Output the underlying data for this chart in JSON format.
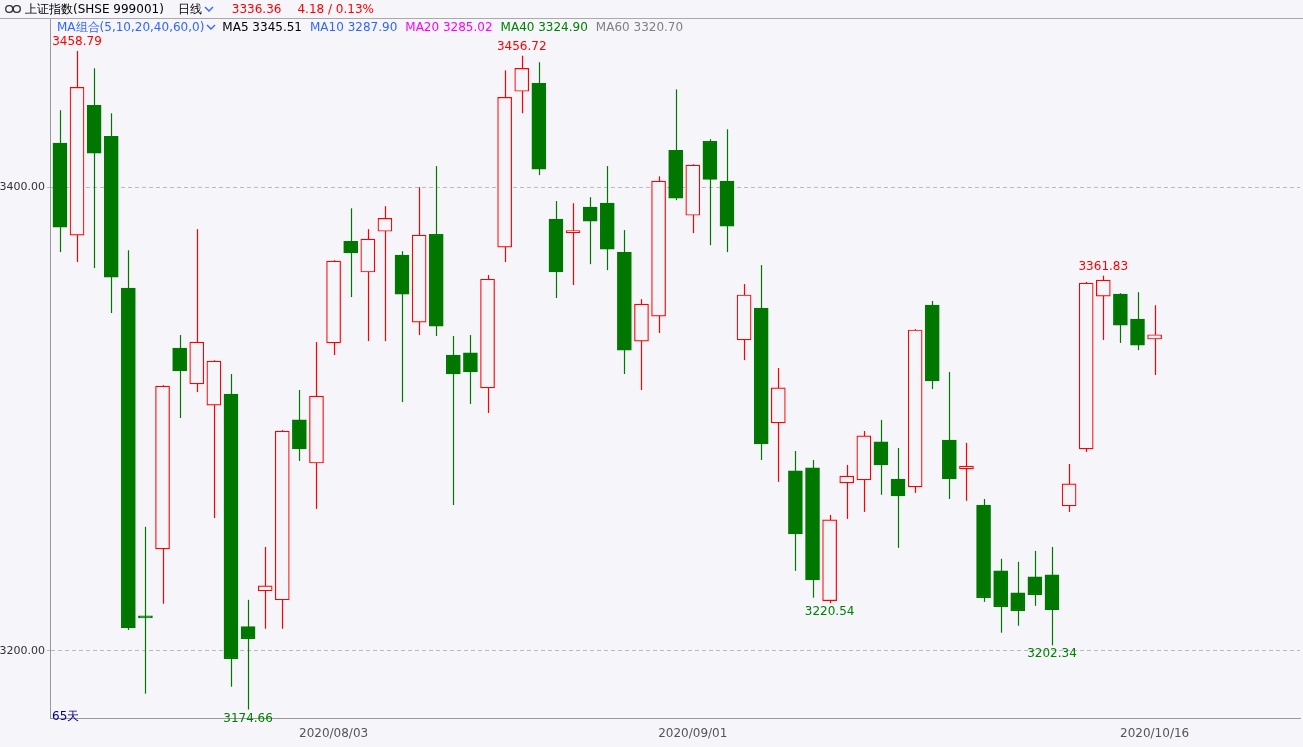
{
  "chart_data": {
    "type": "candlestick",
    "title": "上证指数(SHSE 999001)",
    "subtitle": "日线",
    "categories": [
      null,
      null,
      null,
      null,
      null,
      null,
      null,
      null,
      null,
      null,
      null,
      null,
      null,
      null,
      null,
      null,
      "2020/08/03",
      null,
      null,
      null,
      null,
      null,
      null,
      null,
      null,
      null,
      null,
      null,
      null,
      null,
      null,
      null,
      null,
      null,
      null,
      null,
      null,
      "2020/09/01",
      null,
      null,
      null,
      null,
      null,
      null,
      null,
      null,
      null,
      null,
      null,
      null,
      null,
      null,
      null,
      null,
      null,
      null,
      null,
      null,
      null,
      null,
      null,
      null,
      null,
      null,
      "2020/10/16"
    ],
    "ohlc": [
      [
        3419.0,
        3433.2,
        3372.0,
        3382.8
      ],
      [
        3379.3,
        3458.79,
        3367.7,
        3443.1
      ],
      [
        3435.3,
        3451.3,
        3365.1,
        3414.7
      ],
      [
        3422.0,
        3431.9,
        3345.7,
        3361.2
      ],
      [
        3356.5,
        3372.8,
        3209.0,
        3209.9
      ],
      [
        3214.5,
        3253.5,
        3181.5,
        3214.2
      ],
      [
        3244.0,
        3314.6,
        3220.3,
        3314.2
      ],
      [
        3330.6,
        3336.2,
        3300.4,
        3320.7
      ],
      [
        3315.1,
        3381.9,
        3311.6,
        3333.2
      ],
      [
        3306.0,
        3325.3,
        3257.3,
        3325.0
      ],
      [
        3310.8,
        3319.4,
        3184.5,
        3196.6
      ],
      [
        3210.4,
        3222.0,
        3174.66,
        3205.2
      ],
      [
        3225.9,
        3244.8,
        3209.5,
        3228.0
      ],
      [
        3222.0,
        3295.2,
        3209.5,
        3294.8
      ],
      [
        3299.6,
        3312.5,
        3281.9,
        3287.1
      ],
      [
        3281.0,
        3333.2,
        3261.2,
        3309.9
      ],
      [
        3332.8,
        3368.5,
        3327.6,
        3368.1
      ],
      [
        3376.7,
        3390.9,
        3352.6,
        3371.6
      ],
      [
        3363.4,
        3381.9,
        3333.6,
        3377.6
      ],
      [
        3381.0,
        3391.8,
        3333.6,
        3386.6
      ],
      [
        3370.7,
        3372.4,
        3307.3,
        3353.9
      ],
      [
        3341.8,
        3400.0,
        3336.2,
        3379.3
      ],
      [
        3379.7,
        3409.1,
        3335.8,
        3340.1
      ],
      [
        3327.6,
        3335.8,
        3262.9,
        3319.4
      ],
      [
        3328.5,
        3336.2,
        3306.5,
        3320.3
      ],
      [
        3313.4,
        3362.1,
        3302.6,
        3360.3
      ],
      [
        3374.1,
        3450.4,
        3367.7,
        3438.8
      ],
      [
        3441.4,
        3456.72,
        3431.9,
        3451.3
      ],
      [
        3444.8,
        3453.9,
        3405.2,
        3407.8
      ],
      [
        3386.2,
        3394.0,
        3352.2,
        3363.4
      ],
      [
        3380.4,
        3393.1,
        3357.8,
        3380.6
      ],
      [
        3391.4,
        3395.7,
        3366.8,
        3385.3
      ],
      [
        3393.1,
        3409.1,
        3364.2,
        3373.3
      ],
      [
        3372.0,
        3381.5,
        3319.4,
        3329.7
      ],
      [
        3333.6,
        3351.7,
        3312.5,
        3349.6
      ],
      [
        3344.4,
        3404.7,
        3337.1,
        3402.6
      ],
      [
        3415.9,
        3442.2,
        3394.4,
        3395.3
      ],
      [
        3387.9,
        3409.9,
        3380.2,
        3409.5
      ],
      [
        3419.8,
        3420.7,
        3375.0,
        3403.4
      ],
      [
        3402.6,
        3425.0,
        3372.0,
        3383.2
      ],
      [
        3334.1,
        3358.2,
        3325.4,
        3353.5
      ],
      [
        3347.8,
        3366.4,
        3282.3,
        3289.2
      ],
      [
        3298.3,
        3322.0,
        3272.9,
        3313.4
      ],
      [
        3277.6,
        3286.2,
        3234.5,
        3250.4
      ],
      [
        3278.9,
        3282.3,
        3222.9,
        3230.6
      ],
      [
        3221.6,
        3258.6,
        3220.54,
        3256.5
      ],
      [
        3272.4,
        3280.2,
        3256.9,
        3275.4
      ],
      [
        3273.7,
        3294.8,
        3259.9,
        3292.7
      ],
      [
        3290.1,
        3299.6,
        3267.3,
        3280.2
      ],
      [
        3274.1,
        3287.5,
        3244.4,
        3266.8
      ],
      [
        3270.7,
        3338.8,
        3268.1,
        3338.4
      ],
      [
        3349.1,
        3350.9,
        3312.9,
        3316.4
      ],
      [
        3290.9,
        3320.3,
        3265.5,
        3274.1
      ],
      [
        3278.5,
        3289.7,
        3264.7,
        3279.7
      ],
      [
        3262.9,
        3265.5,
        3221.1,
        3222.9
      ],
      [
        3234.5,
        3239.7,
        3207.8,
        3219.0
      ],
      [
        3225.0,
        3238.4,
        3210.8,
        3217.3
      ],
      [
        3231.9,
        3243.1,
        3219.4,
        3224.2
      ],
      [
        3232.8,
        3244.8,
        3202.34,
        3217.7
      ],
      [
        3262.5,
        3280.6,
        3259.9,
        3272.0
      ],
      [
        3287.1,
        3359.1,
        3285.8,
        3358.6
      ],
      [
        3353.0,
        3361.83,
        3334.1,
        3359.9
      ],
      [
        3353.9,
        3354.3,
        3332.8,
        3340.5
      ],
      [
        3343.1,
        3354.7,
        3329.7,
        3331.9
      ],
      [
        3334.5,
        3349.1,
        3319.0,
        3336.36
      ]
    ],
    "colors": [
      "#007800",
      "#ff0000",
      "#007800",
      "#007800",
      "#007800",
      "#007800",
      "#ff0000",
      "#007800",
      "#ff0000",
      "#ff0000",
      "#007800",
      "#007800",
      "#ff0000",
      "#ff0000",
      "#007800",
      "#ff0000",
      "#ff0000",
      "#007800",
      "#ff0000",
      "#ff0000",
      "#007800",
      "#ff0000",
      "#007800",
      "#007800",
      "#007800",
      "#ff0000",
      "#ff0000",
      "#ff0000",
      "#007800",
      "#007800",
      "#ff0000",
      "#007800",
      "#007800",
      "#007800",
      "#ff0000",
      "#ff0000",
      "#007800",
      "#ff0000",
      "#007800",
      "#007800",
      "#ff0000",
      "#007800",
      "#ff0000",
      "#007800",
      "#007800",
      "#ff0000",
      "#ff0000",
      "#ff0000",
      "#007800",
      "#007800",
      "#ff0000",
      "#007800",
      "#007800",
      "#ff0000",
      "#007800",
      "#007800",
      "#007800",
      "#007800",
      "#007800",
      "#ff0000",
      "#ff0000",
      "#ff0000",
      "#007800",
      "#007800",
      "#ff0000"
    ],
    "ylim": [
      3171,
      3473
    ],
    "yticks": [
      {
        "value": 3200,
        "label": "3200.00"
      },
      {
        "value": 3400,
        "label": "3400.00"
      }
    ],
    "grid": "y",
    "annotations": [
      "3336.36",
      "4.18 / 0.13%",
      "MA组合(5,10,20,40,60,0)",
      "MA5 3345.51",
      "MA10 3287.90",
      "MA20 3285.02",
      "MA40 3324.90",
      "MA60 3320.70",
      "65天",
      {
        "text": "3458.79",
        "y": 3458.79
      },
      {
        "text": "3456.72",
        "y": 3456.72
      },
      {
        "text": "3361.83",
        "y": 3361.83
      },
      {
        "text": "3174.66",
        "y": 3174.66
      },
      {
        "text": "3220.54",
        "y": 3220.54
      },
      {
        "text": "3202.34",
        "y": 3202.34
      }
    ]
  }
}
